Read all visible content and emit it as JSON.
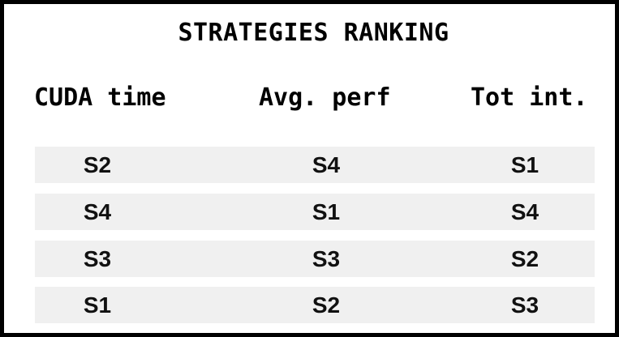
{
  "title": "STRATEGIES RANKING",
  "columns": [
    "CUDA time",
    "Avg. perf",
    "Tot int."
  ],
  "rows": [
    [
      "S2",
      "S4",
      "S1"
    ],
    [
      "S4",
      "S1",
      "S4"
    ],
    [
      "S3",
      "S3",
      "S2"
    ],
    [
      "S1",
      "S2",
      "S3"
    ]
  ],
  "colors": {
    "border": "#000000",
    "row_background": "#f0f0f0",
    "background": "#ffffff"
  }
}
